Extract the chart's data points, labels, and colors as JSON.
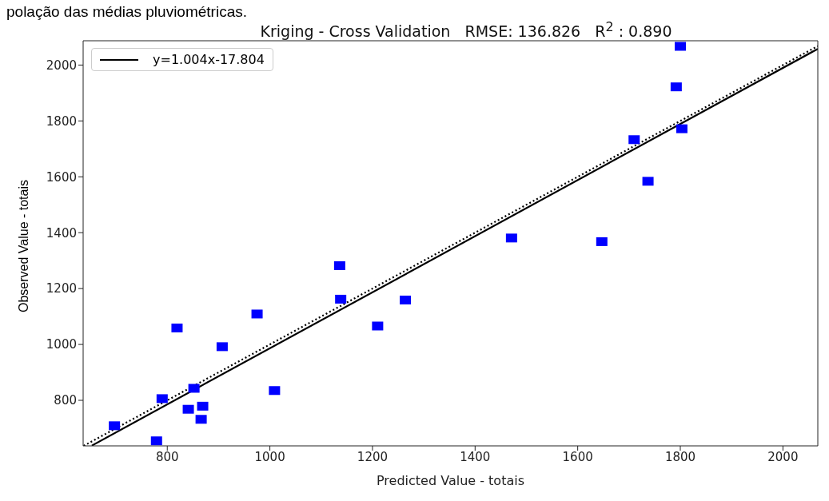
{
  "chart_data": {
    "type": "scatter",
    "title": "Kriging - Cross Validation   RMSE: 136.826   R$^{2}$ : 0.890",
    "xlabel": "Predicted Value - totais",
    "ylabel": "Observed Value - totais",
    "annotations": [
      "polação das médias pluviométricas."
    ],
    "xlim": [
      636,
      2068
    ],
    "ylim": [
      637,
      2087
    ],
    "xticks": [
      800,
      1000,
      1200,
      1400,
      1600,
      1800,
      2000
    ],
    "yticks": [
      800,
      1000,
      1200,
      1400,
      1600,
      1800,
      2000
    ],
    "grid": false,
    "legend": "top left",
    "marker": "square",
    "series": [
      {
        "color": "#0000ff",
        "x": [
          697,
          779,
          790,
          819,
          841,
          852,
          869,
          866,
          907,
          975,
          1009,
          1136,
          1138,
          1210,
          1264,
          1471,
          1647,
          1737,
          1710,
          1803,
          1792,
          1800
        ],
        "values": [
          709,
          655,
          806,
          1059,
          768,
          843,
          779,
          732,
          992,
          1109,
          835,
          1282,
          1162,
          1066,
          1159,
          1381,
          1368,
          1584,
          1733,
          1772,
          1922,
          2067
        ]
      },
      {
        "type": "line",
        "name": "y=1.004x-17.804",
        "color": "#000000",
        "line_style": "solid",
        "marker": "none",
        "x": [
          653,
          2068
        ],
        "values": [
          638,
          2058
        ]
      },
      {
        "type": "line",
        "color": "#000000",
        "line_style": "dotted",
        "marker": "none",
        "x": [
          637,
          2068
        ],
        "values": [
          637,
          2068
        ]
      }
    ]
  }
}
